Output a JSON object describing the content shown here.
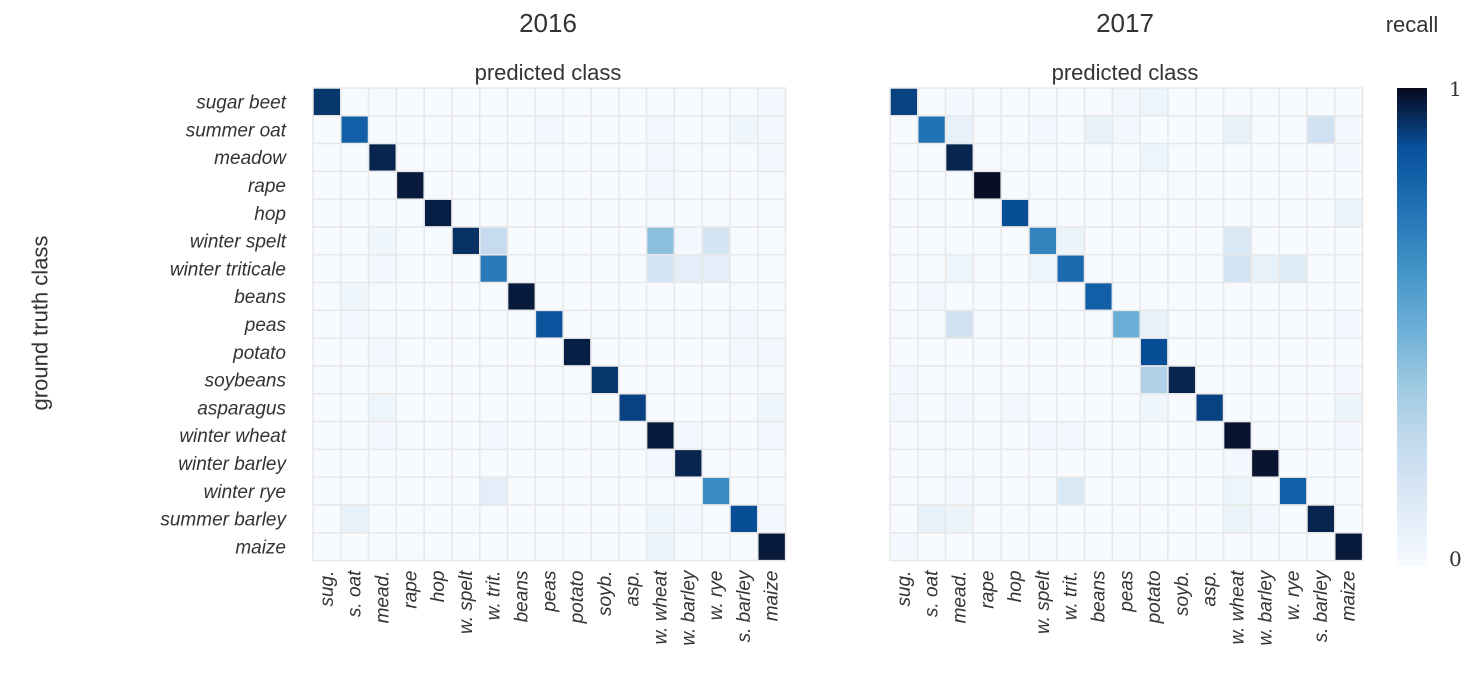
{
  "cbar": {
    "title": "recall",
    "max_label": "1",
    "min_label": "0"
  },
  "ylabel": "ground truth class",
  "chart_data": [
    {
      "type": "heatmap",
      "title": "2016",
      "xlabel": "predicted class",
      "ylabel": "ground truth class",
      "x_categories": [
        "sug.",
        "s. oat",
        "mead.",
        "rape",
        "hop",
        "w. spelt",
        "w. trit.",
        "beans",
        "peas",
        "potato",
        "soyb.",
        "asp.",
        "w. wheat",
        "w. barley",
        "w. rye",
        "s. barley",
        "maize"
      ],
      "y_categories": [
        "sugar beet",
        "summer oat",
        "meadow",
        "rape",
        "hop",
        "winter spelt",
        "winter triticale",
        "beans",
        "peas",
        "potato",
        "soybeans",
        "asparagus",
        "winter wheat",
        "winter barley",
        "winter rye",
        "summer barley",
        "maize"
      ],
      "zlim": [
        0,
        1
      ],
      "colormap": "Blues",
      "values": [
        [
          0.92,
          0,
          0.01,
          0,
          0,
          0,
          0,
          0,
          0,
          0,
          0,
          0,
          0,
          0,
          0,
          0,
          0.02
        ],
        [
          0,
          0.82,
          0.01,
          0,
          0,
          0,
          0,
          0,
          0.03,
          0,
          0,
          0,
          0.02,
          0,
          0,
          0.04,
          0.02
        ],
        [
          0,
          0,
          0.95,
          0,
          0,
          0,
          0,
          0,
          0,
          0,
          0,
          0,
          0.03,
          0.01,
          0,
          0,
          0.03
        ],
        [
          0,
          0,
          0,
          0.97,
          0,
          0,
          0,
          0,
          0,
          0,
          0,
          0,
          0.02,
          0.01,
          0,
          0,
          0
        ],
        [
          0,
          0,
          0,
          0,
          0.96,
          0,
          0,
          0,
          0,
          0,
          0,
          0,
          0,
          0,
          0,
          0,
          0.01
        ],
        [
          0,
          0,
          0.04,
          0,
          0,
          0.93,
          0.25,
          0,
          0,
          0,
          0,
          0,
          0.42,
          0.02,
          0.18,
          0,
          0
        ],
        [
          0,
          0,
          0.02,
          0,
          0,
          0,
          0.72,
          0,
          0,
          0,
          0,
          0,
          0.18,
          0.1,
          0.1,
          0,
          0
        ],
        [
          0,
          0.04,
          0.01,
          0,
          0,
          0,
          0,
          0.97,
          0.01,
          0,
          0,
          0,
          0,
          0,
          0,
          0.01,
          0
        ],
        [
          0,
          0.02,
          0.01,
          0,
          0,
          0,
          0,
          0,
          0.86,
          0,
          0,
          0,
          0.01,
          0,
          0,
          0.02,
          0
        ],
        [
          0,
          0,
          0.02,
          0,
          0,
          0,
          0,
          0,
          0,
          0.96,
          0,
          0,
          0,
          0,
          0,
          0.02,
          0.03
        ],
        [
          0,
          0,
          0,
          0,
          0,
          0,
          0,
          0,
          0,
          0,
          0.92,
          0,
          0,
          0,
          0,
          0,
          0.01
        ],
        [
          0,
          0,
          0.05,
          0,
          0,
          0,
          0,
          0,
          0,
          0,
          0,
          0.9,
          0,
          0,
          0,
          0,
          0.04
        ],
        [
          0,
          0,
          0.02,
          0.01,
          0,
          0,
          0.02,
          0,
          0,
          0,
          0,
          0,
          0.97,
          0.02,
          0,
          0,
          0.03
        ],
        [
          0,
          0,
          0.01,
          0,
          0,
          0,
          0,
          0,
          0,
          0,
          0,
          0,
          0.02,
          0.95,
          0,
          0,
          0
        ],
        [
          0,
          0,
          0,
          0,
          0,
          0,
          0.1,
          0,
          0,
          0,
          0,
          0,
          0.01,
          0,
          0.65,
          0,
          0
        ],
        [
          0,
          0.08,
          0.01,
          0,
          0,
          0.01,
          0,
          0,
          0,
          0,
          0,
          0,
          0.04,
          0.02,
          0.01,
          0.88,
          0.02
        ],
        [
          0,
          0,
          0.01,
          0.01,
          0,
          0,
          0,
          0,
          0.01,
          0,
          0,
          0,
          0.06,
          0.01,
          0,
          0.01,
          0.97
        ]
      ]
    },
    {
      "type": "heatmap",
      "title": "2017",
      "xlabel": "predicted class",
      "ylabel": "ground truth class",
      "x_categories": [
        "sug.",
        "s. oat",
        "mead.",
        "rape",
        "hop",
        "w. spelt",
        "w. trit.",
        "beans",
        "peas",
        "potato",
        "soyb.",
        "asp.",
        "w. wheat",
        "w. barley",
        "w. rye",
        "s. barley",
        "maize"
      ],
      "y_categories": [
        "sugar beet",
        "summer oat",
        "meadow",
        "rape",
        "hop",
        "winter spelt",
        "winter triticale",
        "beans",
        "peas",
        "potato",
        "soybeans",
        "asparagus",
        "winter wheat",
        "winter barley",
        "winter rye",
        "summer barley",
        "maize"
      ],
      "zlim": [
        0,
        1
      ],
      "colormap": "Blues",
      "values": [
        [
          0.9,
          0,
          0.02,
          0,
          0,
          0,
          0,
          0,
          0.03,
          0.05,
          0,
          0,
          0,
          0,
          0,
          0,
          0
        ],
        [
          0,
          0.75,
          0.08,
          0,
          0,
          0.02,
          0,
          0.08,
          0.02,
          0,
          0,
          0,
          0.08,
          0,
          0,
          0.2,
          0.02
        ],
        [
          0,
          0,
          0.95,
          0,
          0.01,
          0,
          0,
          0,
          0,
          0.05,
          0,
          0,
          0,
          0,
          0,
          0,
          0.02
        ],
        [
          0,
          0,
          0,
          0.99,
          0,
          0,
          0,
          0,
          0,
          0,
          0.01,
          0,
          0,
          0,
          0,
          0,
          0
        ],
        [
          0,
          0,
          0,
          0,
          0.88,
          0,
          0,
          0,
          0,
          0,
          0,
          0,
          0,
          0,
          0,
          0,
          0.06
        ],
        [
          0,
          0,
          0.01,
          0,
          0,
          0.68,
          0.06,
          0,
          0,
          0,
          0,
          0,
          0.15,
          0,
          0,
          0,
          0
        ],
        [
          0,
          0,
          0.05,
          0,
          0,
          0.05,
          0.78,
          0,
          0,
          0,
          0,
          0,
          0.18,
          0.08,
          0.12,
          0,
          0
        ],
        [
          0,
          0.03,
          0,
          0,
          0,
          0,
          0,
          0.82,
          0,
          0,
          0,
          0,
          0,
          0,
          0,
          0,
          0
        ],
        [
          0,
          0,
          0.2,
          0,
          0,
          0,
          0,
          0,
          0.5,
          0.08,
          0,
          0,
          0,
          0,
          0,
          0,
          0.02
        ],
        [
          0,
          0,
          0,
          0,
          0,
          0,
          0,
          0,
          0,
          0.88,
          0,
          0,
          0,
          0,
          0,
          0,
          0
        ],
        [
          0.02,
          0,
          0.01,
          0,
          0,
          0,
          0,
          0,
          0,
          0.32,
          0.95,
          0,
          0,
          0,
          0,
          0,
          0.02
        ],
        [
          0.03,
          0,
          0.02,
          0,
          0.02,
          0,
          0,
          0,
          0,
          0.04,
          0,
          0.9,
          0,
          0,
          0,
          0,
          0.06
        ],
        [
          0,
          0,
          0.01,
          0,
          0,
          0.02,
          0.03,
          0,
          0,
          0,
          0,
          0,
          0.98,
          0,
          0,
          0,
          0.02
        ],
        [
          0,
          0,
          0.01,
          0,
          0,
          0,
          0,
          0,
          0,
          0,
          0,
          0,
          0.02,
          0.98,
          0,
          0,
          0
        ],
        [
          0,
          0,
          0.02,
          0,
          0,
          0,
          0.15,
          0,
          0,
          0,
          0,
          0,
          0.05,
          0,
          0.82,
          0,
          0
        ],
        [
          0,
          0.08,
          0.06,
          0,
          0.01,
          0,
          0,
          0,
          0,
          0,
          0,
          0,
          0.06,
          0.02,
          0,
          0.95,
          0.01
        ],
        [
          0.02,
          0,
          0,
          0,
          0,
          0,
          0,
          0,
          0,
          0,
          0,
          0,
          0,
          0,
          0,
          0,
          0.97
        ]
      ]
    }
  ]
}
